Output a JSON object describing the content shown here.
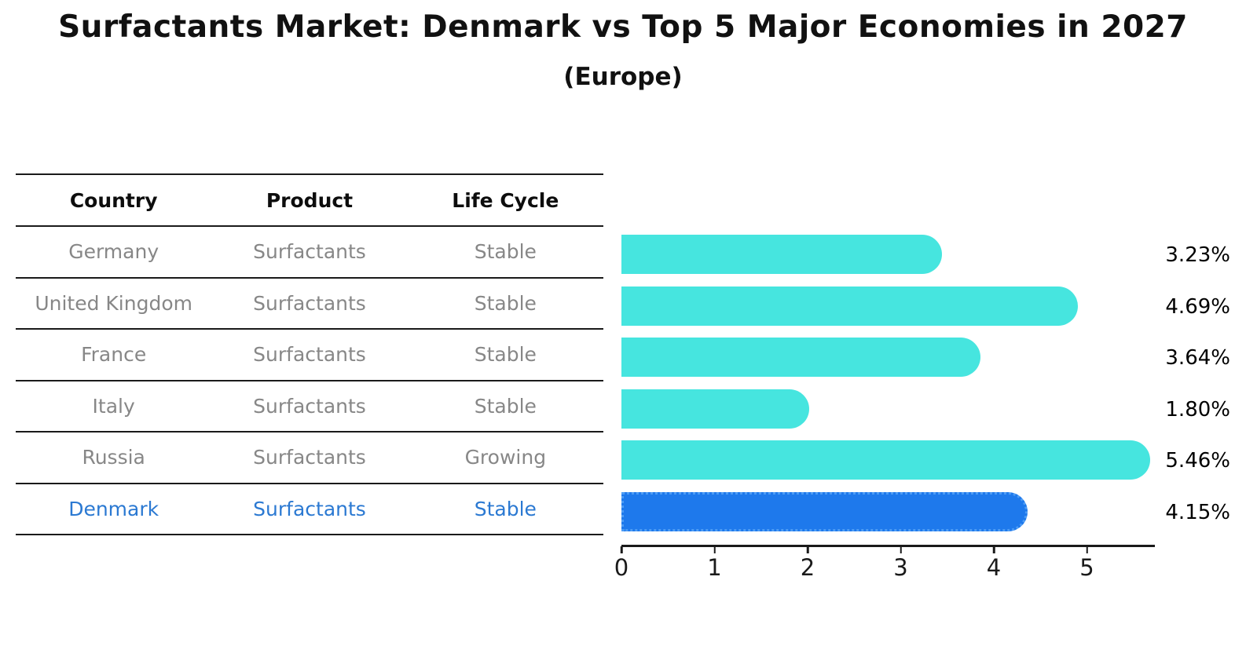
{
  "title": "Surfactants Market: Denmark vs Top 5 Major Economies in 2027",
  "subtitle": "(Europe)",
  "table": {
    "headers": [
      "Country",
      "Product",
      "Life Cycle"
    ],
    "rows": [
      {
        "country": "Germany",
        "product": "Surfactants",
        "life_cycle": "Stable"
      },
      {
        "country": "United Kingdom",
        "product": "Surfactants",
        "life_cycle": "Stable"
      },
      {
        "country": "France",
        "product": "Surfactants",
        "life_cycle": "Stable"
      },
      {
        "country": "Italy",
        "product": "Surfactants",
        "life_cycle": "Stable"
      },
      {
        "country": "Russia",
        "product": "Surfactants",
        "life_cycle": "Growing"
      },
      {
        "country": "Denmark",
        "product": "Surfactants",
        "life_cycle": "Stable"
      }
    ],
    "highlight_index": 5
  },
  "chart_data": {
    "type": "bar",
    "orientation": "horizontal",
    "categories": [
      "Germany",
      "United Kingdom",
      "France",
      "Italy",
      "Russia",
      "Denmark"
    ],
    "values": [
      3.23,
      4.69,
      3.64,
      1.8,
      5.46,
      4.15
    ],
    "value_labels": [
      "3.23%",
      "4.69%",
      "3.64%",
      "1.80%",
      "5.46%",
      "4.15%"
    ],
    "x_ticks": [
      "0",
      "1",
      "2",
      "3",
      "4",
      "5"
    ],
    "xlim": [
      0,
      5.73
    ],
    "grid": false,
    "legend": false,
    "highlight_index": 5,
    "title": "Surfactants Market: Denmark vs Top 5 Major Economies in 2027",
    "subtitle": "(Europe)"
  },
  "colors": {
    "bar": "#46e5df",
    "highlight_bar": "#1e79ec",
    "highlight_border": "#4d9cf5",
    "row_text": "#878787",
    "highlight_text": "#2b79d2",
    "header_text": "#0d0d0d",
    "axis": "#1a1a1a"
  }
}
